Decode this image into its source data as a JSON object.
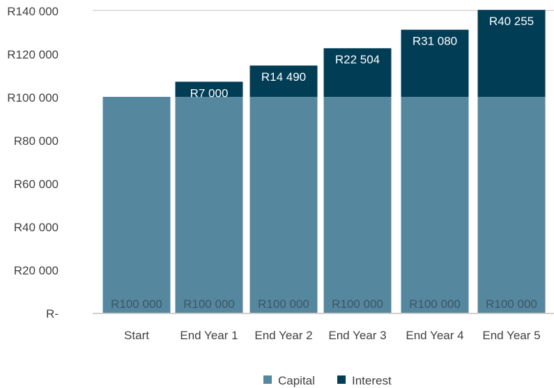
{
  "chart_data": {
    "type": "bar",
    "stacked": true,
    "categories": [
      "Start",
      "End Year 1",
      "End Year 2",
      "End Year 3",
      "End Year 4",
      "End Year 5"
    ],
    "series": [
      {
        "name": "Capital",
        "color": "#55879f",
        "values": [
          100000,
          100000,
          100000,
          100000,
          100000,
          100000
        ],
        "labels": [
          "R100 000",
          "R100 000",
          "R100 000",
          "R100 000",
          "R100 000",
          "R100 000"
        ]
      },
      {
        "name": "Interest",
        "color": "#023d56",
        "values": [
          0,
          7000,
          14490,
          22504,
          31080,
          40255
        ],
        "labels": [
          "",
          "R7 000",
          "R14 490",
          "R22 504",
          "R31 080",
          "R40 255"
        ]
      }
    ],
    "ylim": [
      0,
      140000
    ],
    "yticks": [
      0,
      20000,
      40000,
      60000,
      80000,
      100000,
      120000,
      140000
    ],
    "ytick_labels": [
      "R-",
      "R20 000",
      "R40 000",
      "R60 000",
      "R80 000",
      "R100 000",
      "R120 000",
      "R140 000"
    ],
    "legend_position": "bottom",
    "grid": false
  }
}
